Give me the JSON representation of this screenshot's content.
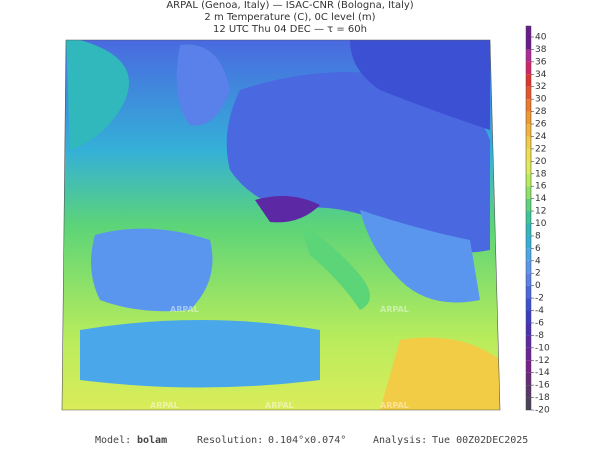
{
  "header": {
    "lines": [
      "ARPAL (Genoa, Italy)  —  ISAC-CNR (Bologna, Italy)",
      "2 m Temperature (C), 0C level (m)",
      "12 UTC Thu 04 DEC  —  τ = 60h"
    ]
  },
  "watermark": "ARPAL",
  "colorbar": {
    "ticks": [
      40,
      38,
      36,
      34,
      32,
      30,
      28,
      26,
      24,
      22,
      20,
      18,
      16,
      14,
      12,
      10,
      8,
      6,
      4,
      2,
      0,
      -2,
      -4,
      -6,
      -8,
      -10,
      -12,
      -14,
      -16,
      -18,
      -20
    ],
    "colors": [
      "#6a1b8a",
      "#b02a9a",
      "#d4246a",
      "#e0342c",
      "#e8542a",
      "#ee7a2a",
      "#f29a30",
      "#f4b43a",
      "#f2cc44",
      "#eede50",
      "#dcec5a",
      "#b8ec5c",
      "#8ee266",
      "#5cd478",
      "#3cc69a",
      "#30b8bc",
      "#34b0d8",
      "#4aa8ea",
      "#5a96ee",
      "#5a80ea",
      "#4a68e0",
      "#3c50d4",
      "#3a3cc4",
      "#4a30b4",
      "#5c28a4",
      "#6c2298",
      "#7a1e8c",
      "#6a2a7a",
      "#5a3668",
      "#4a4258"
    ]
  },
  "footer": {
    "model_label": "Model:",
    "model": "bolam",
    "resolution_label": "Resolution:",
    "resolution": "0.104°x0.074°",
    "analysis_label": "Analysis:",
    "analysis": "Tue 00Z02DEC2025"
  }
}
